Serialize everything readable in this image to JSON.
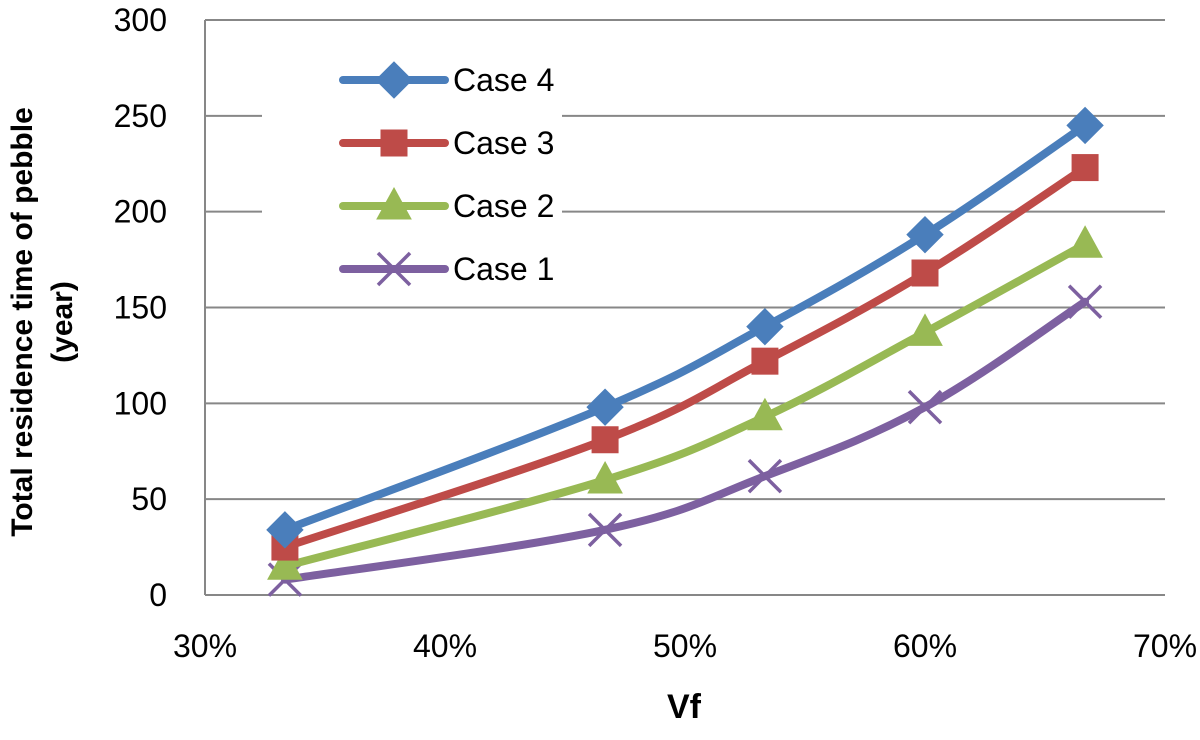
{
  "chart_data": {
    "type": "line",
    "xlabel": "Vf",
    "ylabel_lines": [
      "Total residence time of pebble",
      "(year)"
    ],
    "xlim": [
      0.3,
      0.7
    ],
    "ylim": [
      0,
      300
    ],
    "x_ticks": [
      0.3,
      0.4,
      0.5,
      0.6,
      0.7
    ],
    "x_tick_labels": [
      "30%",
      "40%",
      "50%",
      "60%",
      "70%"
    ],
    "y_ticks": [
      0,
      50,
      100,
      150,
      200,
      250,
      300
    ],
    "y_tick_labels": [
      "0",
      "50",
      "100",
      "150",
      "200",
      "250",
      "300"
    ],
    "grid": "horizontal",
    "legend_position": "top-left",
    "x": [
      0.3333,
      0.4667,
      0.5333,
      0.6,
      0.6667
    ],
    "series": [
      {
        "name": "Case 4",
        "values": [
          34,
          98,
          140,
          188,
          245
        ],
        "color": "#4a7ebb",
        "marker": "diamond"
      },
      {
        "name": "Case 3",
        "values": [
          25,
          81,
          122,
          168,
          223
        ],
        "color": "#be4b48",
        "marker": "square"
      },
      {
        "name": "Case 2",
        "values": [
          15,
          60,
          93,
          137,
          183
        ],
        "color": "#98b954",
        "marker": "triangle"
      },
      {
        "name": "Case 1",
        "values": [
          8,
          34,
          62,
          98,
          153
        ],
        "color": "#7d60a0",
        "marker": "x"
      }
    ]
  }
}
